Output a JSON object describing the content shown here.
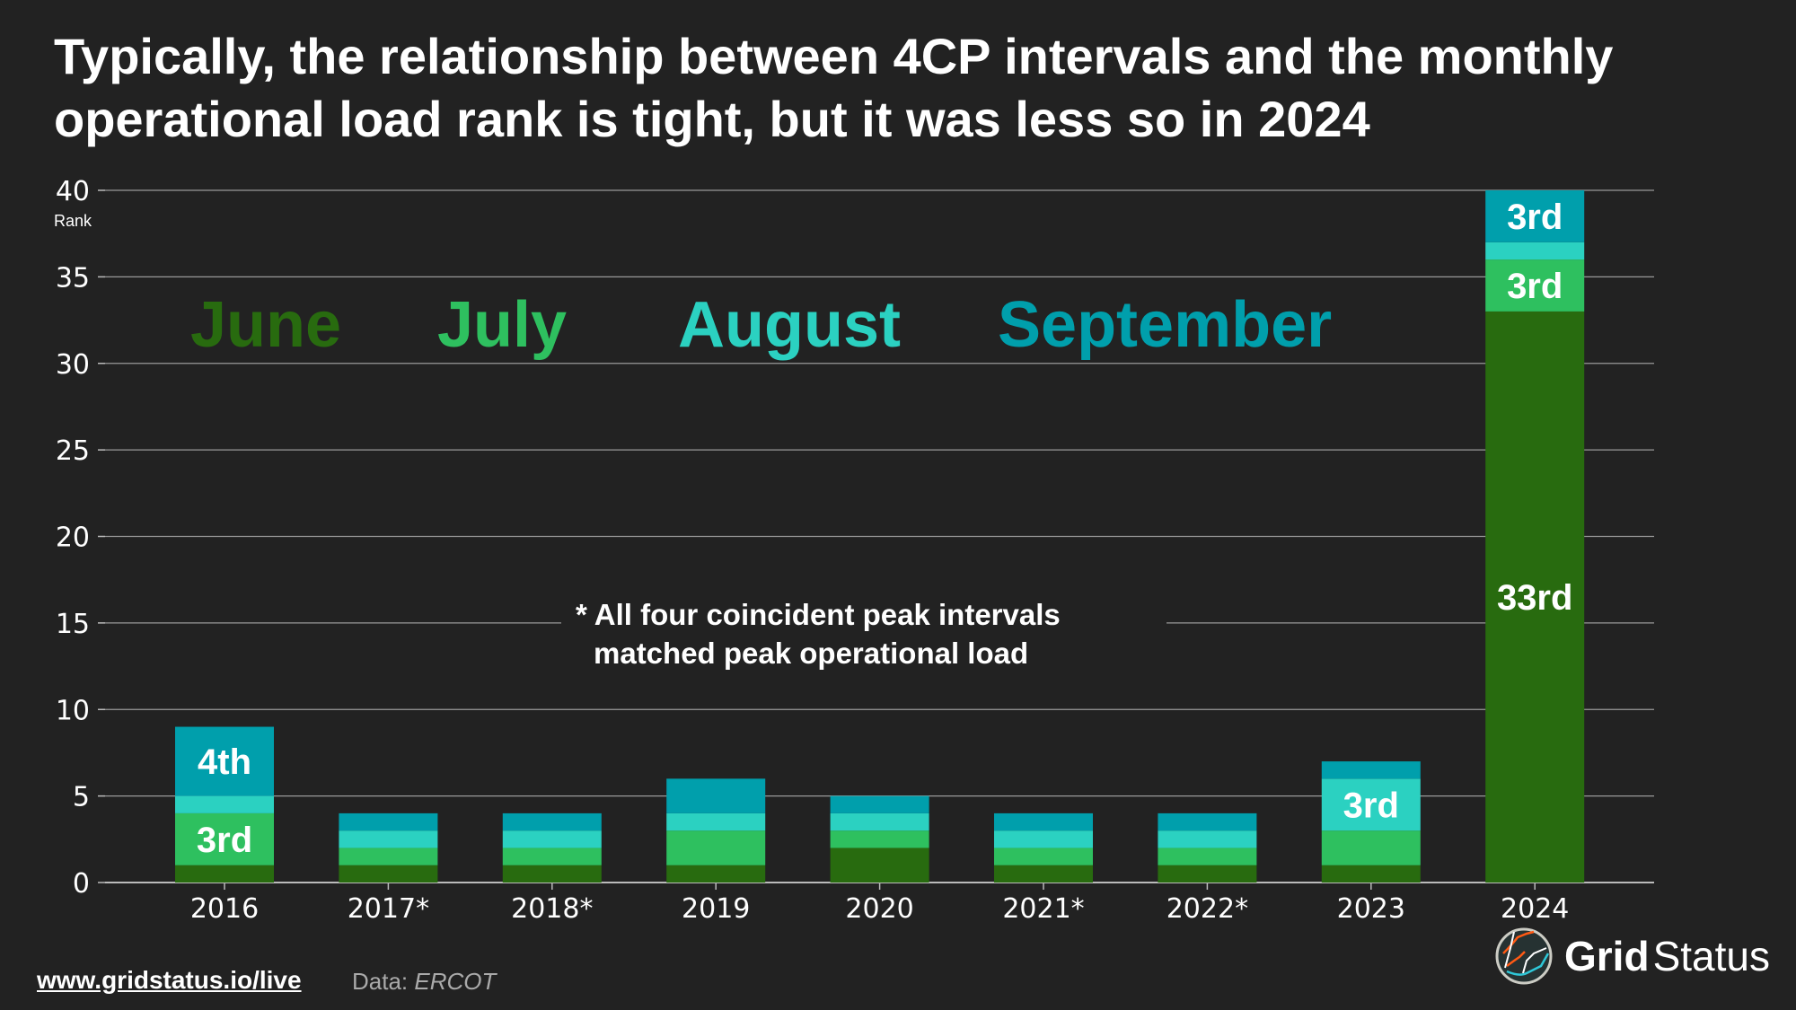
{
  "title": "Typically, the relationship between 4CP intervals and the monthly operational load rank is tight, but it was less so in 2024",
  "chart_data": {
    "type": "bar",
    "stacked": true,
    "categories": [
      "2016",
      "2017*",
      "2018*",
      "2019",
      "2020",
      "2021*",
      "2022*",
      "2023",
      "2024"
    ],
    "series": [
      {
        "name": "June",
        "color": "#286b0f",
        "values": [
          1,
          1,
          1,
          1,
          2,
          1,
          1,
          1,
          33
        ]
      },
      {
        "name": "July",
        "color": "#2ec05f",
        "values": [
          3,
          1,
          1,
          2,
          1,
          1,
          1,
          2,
          3
        ]
      },
      {
        "name": "August",
        "color": "#2bd1c1",
        "values": [
          1,
          1,
          1,
          1,
          1,
          1,
          1,
          3,
          1
        ]
      },
      {
        "name": "September",
        "color": "#009fac",
        "values": [
          4,
          1,
          1,
          2,
          1,
          1,
          1,
          1,
          3
        ]
      }
    ],
    "ylabel": "Rank",
    "ylim": [
      0,
      40
    ],
    "yticks": [
      "0",
      "5",
      "10",
      "15",
      "20",
      "25",
      "30",
      "35",
      "40"
    ],
    "grid": true,
    "legend": "inline-top",
    "data_labels": {
      "rule": "shown when rank >= 3",
      "suffixes": {
        "3": "3rd",
        "4": "4th",
        "33": "33rd"
      }
    },
    "annotation": [
      "* All four coincident peak intervals",
      "matched peak operational load"
    ]
  },
  "footer": {
    "link": "www.gridstatus.io/live",
    "source_prefix": "Data:",
    "source": "ERCOT"
  },
  "logo": {
    "bold": "Grid",
    "regular": "Status"
  },
  "background": "#222222"
}
